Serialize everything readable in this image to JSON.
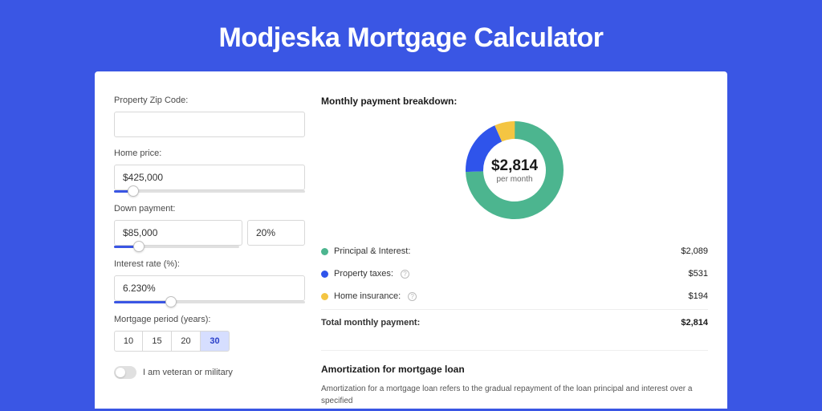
{
  "page": {
    "title": "Modjeska Mortgage Calculator",
    "background_color": "#3a56e4",
    "card_background": "#ffffff"
  },
  "form": {
    "zip": {
      "label": "Property Zip Code:",
      "value": ""
    },
    "home_price": {
      "label": "Home price:",
      "value": "$425,000",
      "slider_percent": 10
    },
    "down_payment": {
      "label": "Down payment:",
      "amount": "$85,000",
      "percent": "20%",
      "slider_percent": 20
    },
    "interest_rate": {
      "label": "Interest rate (%):",
      "value": "6.230%",
      "slider_percent": 30
    },
    "period": {
      "label": "Mortgage period (years):",
      "options": [
        "10",
        "15",
        "20",
        "30"
      ],
      "selected": "30"
    },
    "veteran": {
      "label": "I am veteran or military",
      "checked": false
    }
  },
  "breakdown": {
    "title": "Monthly payment breakdown:",
    "total_amount": "$2,814",
    "total_sub": "per month",
    "donut": {
      "segments": [
        {
          "label": "Principal & Interest",
          "color": "#4cb58f",
          "value": 2089,
          "percent": 74.3
        },
        {
          "label": "Property taxes",
          "color": "#2f54eb",
          "value": 531,
          "percent": 18.9
        },
        {
          "label": "Home insurance",
          "color": "#f4c542",
          "value": 194,
          "percent": 6.9
        }
      ],
      "stroke_width": 22
    },
    "rows": [
      {
        "dot_color": "#4cb58f",
        "label": "Principal & Interest:",
        "info": false,
        "value": "$2,089"
      },
      {
        "dot_color": "#2f54eb",
        "label": "Property taxes:",
        "info": true,
        "value": "$531"
      },
      {
        "dot_color": "#f4c542",
        "label": "Home insurance:",
        "info": true,
        "value": "$194"
      }
    ],
    "total_row": {
      "label": "Total monthly payment:",
      "value": "$2,814"
    }
  },
  "amortization": {
    "title": "Amortization for mortgage loan",
    "text": "Amortization for a mortgage loan refers to the gradual repayment of the loan principal and interest over a specified"
  }
}
